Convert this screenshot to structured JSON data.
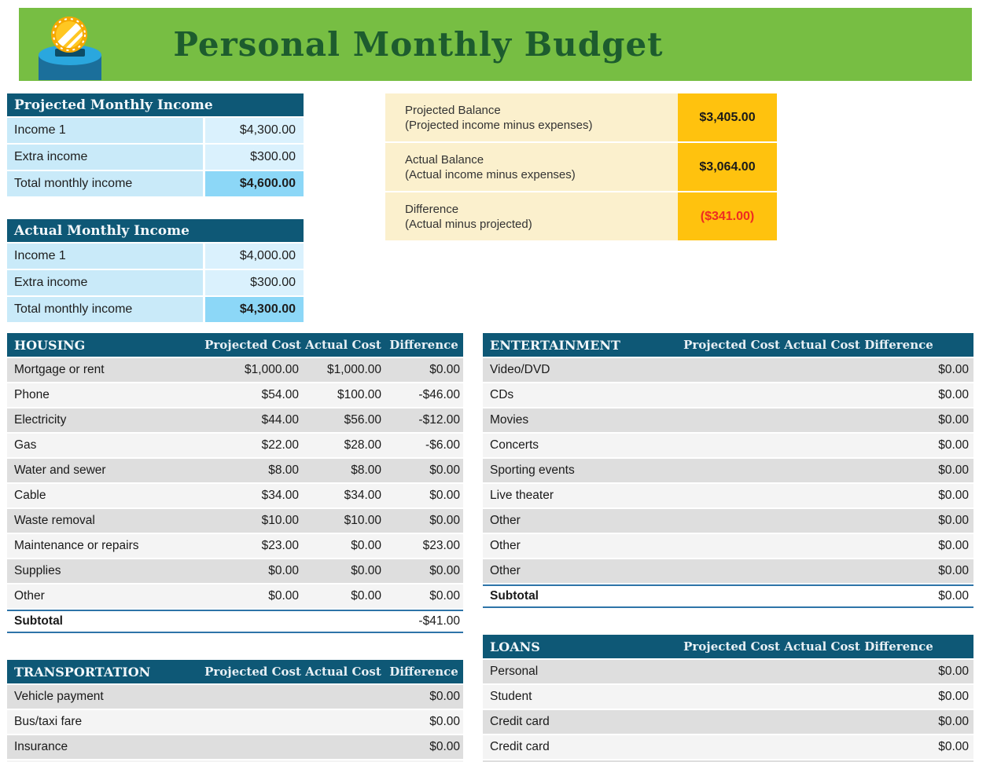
{
  "header": {
    "title": "Personal Monthly Budget",
    "colors": {
      "banner_green": "#77BE43",
      "title_green": "#1D5C2E"
    }
  },
  "income_tables": [
    {
      "id": "projected_income",
      "title": "Projected Monthly Income",
      "rows": [
        {
          "label": "Income 1",
          "value": "$4,300.00"
        },
        {
          "label": "Extra income",
          "value": "$300.00"
        }
      ],
      "total": {
        "label": "Total monthly income",
        "value": "$4,600.00"
      }
    },
    {
      "id": "actual_income",
      "title": "Actual Monthly Income",
      "rows": [
        {
          "label": "Income 1",
          "value": "$4,000.00"
        },
        {
          "label": "Extra income",
          "value": "$300.00"
        }
      ],
      "total": {
        "label": "Total monthly income",
        "value": "$4,300.00"
      }
    }
  ],
  "balance_summary": {
    "rows": [
      {
        "label": "Projected Balance",
        "sublabel": "(Projected income minus expenses)",
        "value": "$3,405.00",
        "negative": false
      },
      {
        "label": "Actual Balance",
        "sublabel": "(Actual income minus expenses)",
        "value": "$3,064.00",
        "negative": false
      },
      {
        "label": "Difference",
        "sublabel": "(Actual minus projected)",
        "value": "($341.00)",
        "negative": true
      }
    ],
    "colors": {
      "label_bg": "#FBF0CD",
      "value_bg": "#FFC20E",
      "negative_text": "#EE2B22"
    }
  },
  "expense_columns": [
    "Projected Cost",
    "Actual Cost",
    "Difference"
  ],
  "expense_tables": [
    {
      "id": "housing",
      "title": "HOUSING",
      "rows": [
        {
          "label": "Mortgage or rent",
          "projected": "$1,000.00",
          "actual": "$1,000.00",
          "difference": "$0.00"
        },
        {
          "label": "Phone",
          "projected": "$54.00",
          "actual": "$100.00",
          "difference": "-$46.00"
        },
        {
          "label": "Electricity",
          "projected": "$44.00",
          "actual": "$56.00",
          "difference": "-$12.00"
        },
        {
          "label": "Gas",
          "projected": "$22.00",
          "actual": "$28.00",
          "difference": "-$6.00"
        },
        {
          "label": "Water and sewer",
          "projected": "$8.00",
          "actual": "$8.00",
          "difference": "$0.00"
        },
        {
          "label": "Cable",
          "projected": "$34.00",
          "actual": "$34.00",
          "difference": "$0.00"
        },
        {
          "label": "Waste removal",
          "projected": "$10.00",
          "actual": "$10.00",
          "difference": "$0.00"
        },
        {
          "label": "Maintenance or repairs",
          "projected": "$23.00",
          "actual": "$0.00",
          "difference": "$23.00"
        },
        {
          "label": "Supplies",
          "projected": "$0.00",
          "actual": "$0.00",
          "difference": "$0.00"
        },
        {
          "label": "Other",
          "projected": "$0.00",
          "actual": "$0.00",
          "difference": "$0.00"
        }
      ],
      "subtotal": {
        "label": "Subtotal",
        "projected": "",
        "actual": "",
        "difference": "-$41.00"
      }
    },
    {
      "id": "entertainment",
      "title": "ENTERTAINMENT",
      "rows": [
        {
          "label": "Video/DVD",
          "projected": "",
          "actual": "",
          "difference": "$0.00"
        },
        {
          "label": "CDs",
          "projected": "",
          "actual": "",
          "difference": "$0.00"
        },
        {
          "label": "Movies",
          "projected": "",
          "actual": "",
          "difference": "$0.00"
        },
        {
          "label": "Concerts",
          "projected": "",
          "actual": "",
          "difference": "$0.00"
        },
        {
          "label": "Sporting events",
          "projected": "",
          "actual": "",
          "difference": "$0.00"
        },
        {
          "label": "Live theater",
          "projected": "",
          "actual": "",
          "difference": "$0.00"
        },
        {
          "label": "Other",
          "projected": "",
          "actual": "",
          "difference": "$0.00"
        },
        {
          "label": "Other",
          "projected": "",
          "actual": "",
          "difference": "$0.00"
        },
        {
          "label": "Other",
          "projected": "",
          "actual": "",
          "difference": "$0.00"
        }
      ],
      "subtotal": {
        "label": "Subtotal",
        "projected": "",
        "actual": "",
        "difference": "$0.00"
      }
    },
    {
      "id": "transportation",
      "title": "TRANSPORTATION",
      "rows": [
        {
          "label": "Vehicle payment",
          "projected": "",
          "actual": "",
          "difference": "$0.00"
        },
        {
          "label": "Bus/taxi fare",
          "projected": "",
          "actual": "",
          "difference": "$0.00"
        },
        {
          "label": "Insurance",
          "projected": "",
          "actual": "",
          "difference": "$0.00"
        },
        {
          "label": "",
          "projected": "",
          "actual": "",
          "difference": ""
        }
      ],
      "subtotal": null
    },
    {
      "id": "loans",
      "title": "LOANS",
      "rows": [
        {
          "label": "Personal",
          "projected": "",
          "actual": "",
          "difference": "$0.00"
        },
        {
          "label": "Student",
          "projected": "",
          "actual": "",
          "difference": "$0.00"
        },
        {
          "label": "Credit card",
          "projected": "",
          "actual": "",
          "difference": "$0.00"
        },
        {
          "label": "Credit card",
          "projected": "",
          "actual": "",
          "difference": "$0.00"
        },
        {
          "label": "",
          "projected": "",
          "actual": "",
          "difference": ""
        }
      ],
      "subtotal": null
    }
  ]
}
